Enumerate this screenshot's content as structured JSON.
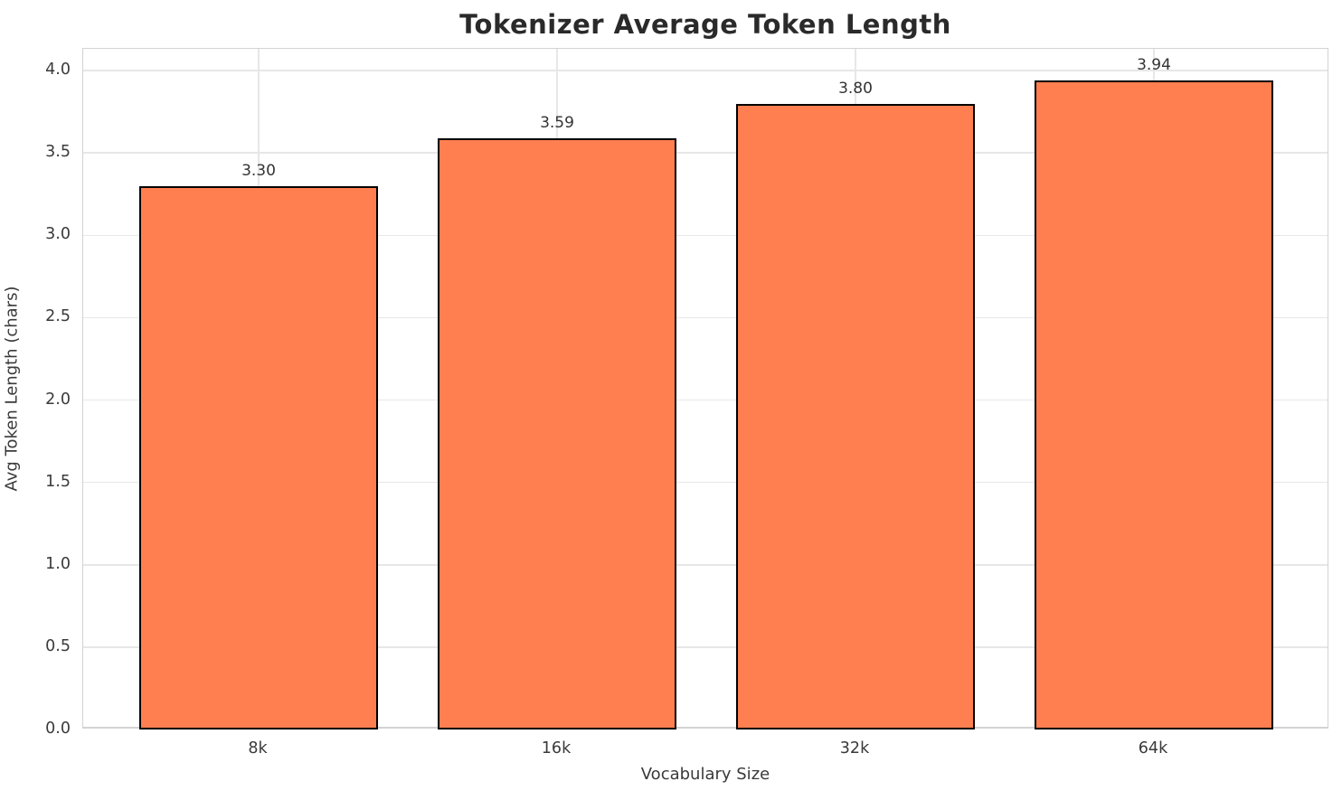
{
  "chart_data": {
    "type": "bar",
    "title": "Tokenizer Average Token Length",
    "xlabel": "Vocabulary Size",
    "ylabel": "Avg Token Length (chars)",
    "categories": [
      "8k",
      "16k",
      "32k",
      "64k"
    ],
    "values": [
      3.3,
      3.59,
      3.8,
      3.94
    ],
    "value_labels": [
      "3.30",
      "3.59",
      "3.80",
      "3.94"
    ],
    "yticks": [
      0.0,
      0.5,
      1.0,
      1.5,
      2.0,
      2.5,
      3.0,
      3.5,
      4.0
    ],
    "ytick_labels": [
      "0.0",
      "0.5",
      "1.0",
      "1.5",
      "2.0",
      "2.5",
      "3.0",
      "3.5",
      "4.0"
    ],
    "ylim": [
      0,
      4.132
    ],
    "bar_rel_width": 0.8,
    "grid": true,
    "legend": null,
    "colors": {
      "bar_fill": "#FF7F50",
      "bar_edge": "#000000",
      "grid_color": "#E7E7E7",
      "spine_color": "#D3D3D3",
      "title_color": "#2A2A2A",
      "tick_color": "#3A3A3A",
      "label_color": "#3A3A3A",
      "value_label_color": "#333333",
      "background": "#FFFFFF"
    }
  }
}
